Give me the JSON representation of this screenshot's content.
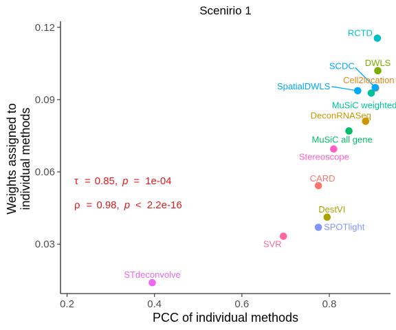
{
  "chart_data": {
    "type": "scatter",
    "title": "Scenirio 1",
    "xlabel": "PCC of individual methods",
    "ylabel_lines": [
      "Weights assigned to",
      "individual methods"
    ],
    "xlim": [
      0.185,
      0.94
    ],
    "ylim": [
      0.0095,
      0.1225
    ],
    "xticks": [
      0.2,
      0.4,
      0.6,
      0.8
    ],
    "xtick_labels": [
      "0.2",
      "0.4",
      "0.6",
      "0.8"
    ],
    "yticks": [
      0.03,
      0.06,
      0.09,
      0.12
    ],
    "ytick_labels": [
      "0.03",
      "0.06",
      "0.09",
      "0.12"
    ],
    "grid": false,
    "points": [
      {
        "label": "RCTD",
        "x": 0.91,
        "y": 0.1155,
        "color": "#00BFC4"
      },
      {
        "label": "DWLS",
        "x": 0.911,
        "y": 0.102,
        "color": "#7CAE00"
      },
      {
        "label": "Cell2location",
        "x": 0.906,
        "y": 0.0948,
        "color": "#E68613"
      },
      {
        "label": "SCDC",
        "x": 0.905,
        "y": 0.095,
        "color": "#00A9FF"
      },
      {
        "label": "SpatialDWLS",
        "x": 0.865,
        "y": 0.0937,
        "color": "#00A9FF"
      },
      {
        "label": "MuSiC weighted",
        "x": 0.896,
        "y": 0.0927,
        "color": "#00C19A"
      },
      {
        "label": "DeconRNASeq",
        "x": 0.883,
        "y": 0.081,
        "color": "#CD9600"
      },
      {
        "label": "MuSiC all gene",
        "x": 0.845,
        "y": 0.077,
        "color": "#00BE67"
      },
      {
        "label": "Stereoscope",
        "x": 0.81,
        "y": 0.0695,
        "color": "#FF61C3"
      },
      {
        "label": "CARD",
        "x": 0.775,
        "y": 0.0543,
        "color": "#F8766D"
      },
      {
        "label": "DestVI",
        "x": 0.795,
        "y": 0.0412,
        "color": "#ABA300"
      },
      {
        "label": "SPOTlight",
        "x": 0.775,
        "y": 0.037,
        "color": "#8494FF"
      },
      {
        "label": "SVR",
        "x": 0.695,
        "y": 0.0333,
        "color": "#FF68A1"
      },
      {
        "label": "STdeconvolve",
        "x": 0.395,
        "y": 0.014,
        "color": "#ED68ED"
      }
    ],
    "annotations": [
      {
        "symbol": "τ",
        "stat_value": "0.85",
        "p_letter": "p",
        "op": "=",
        "p_value": "1e-04"
      },
      {
        "symbol": "ρ",
        "stat_value": "0.98",
        "p_letter": "p",
        "op": "<",
        "p_value": "2.2e-16"
      }
    ],
    "annotation_color": "#e31a1c"
  }
}
